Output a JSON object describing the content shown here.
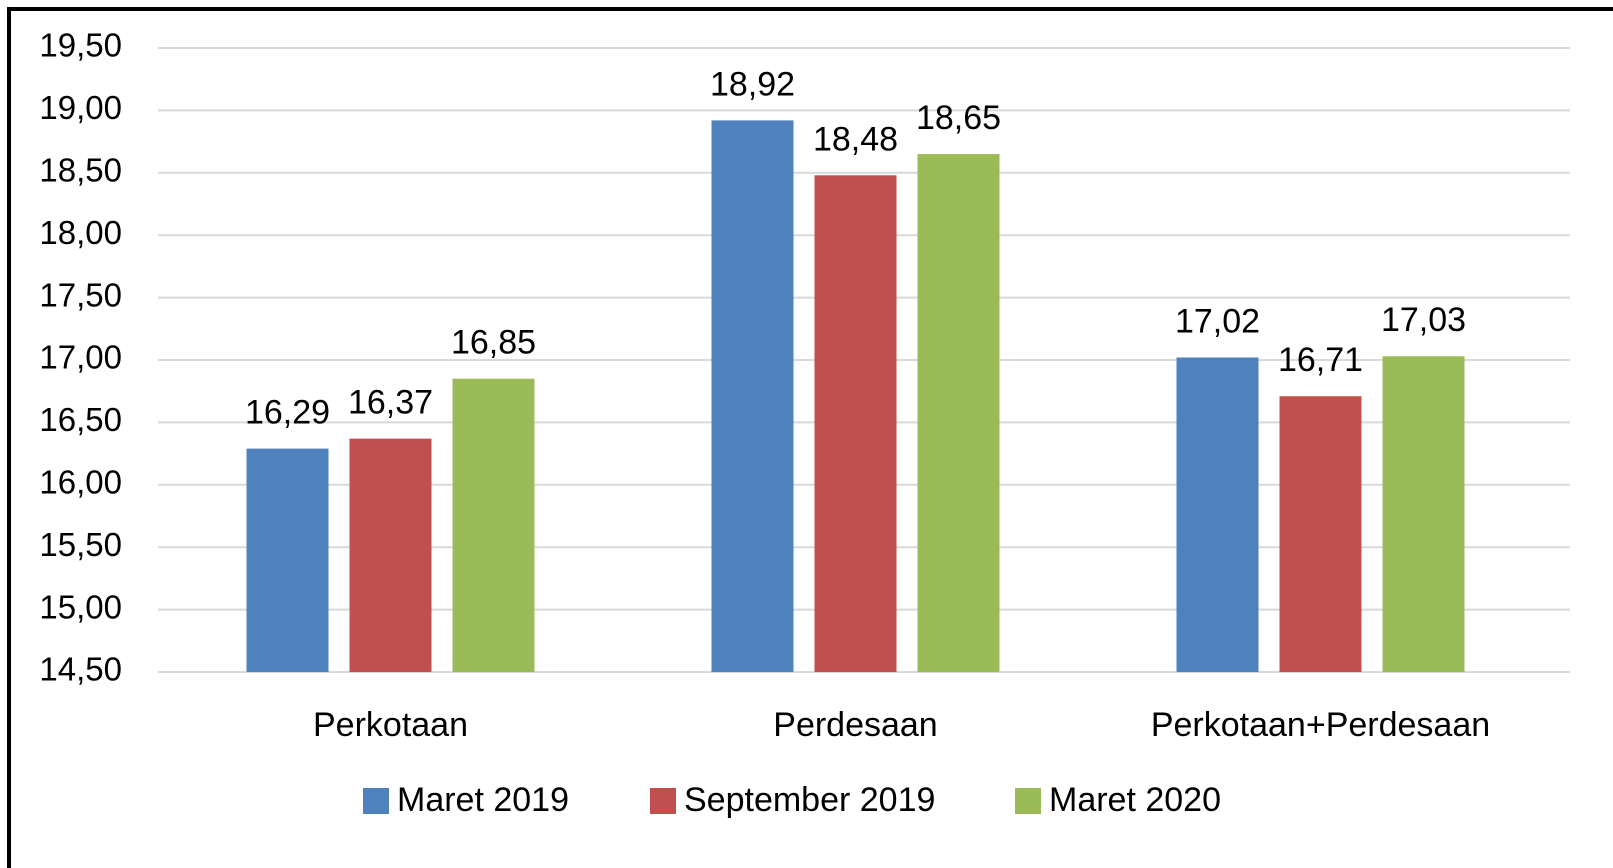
{
  "chart_data": {
    "type": "bar",
    "categories": [
      "Perkotaan",
      "Perdesaan",
      "Perkotaan+Perdesaan"
    ],
    "series": [
      {
        "name": "Maret 2019",
        "color": "#4f81bd",
        "values": [
          16.29,
          18.92,
          17.02
        ],
        "value_labels": [
          "16,29",
          "18,92",
          "17,02"
        ]
      },
      {
        "name": "September 2019",
        "color": "#c0504d",
        "values": [
          16.37,
          18.48,
          16.71
        ],
        "value_labels": [
          "16,37",
          "18,48",
          "16,71"
        ]
      },
      {
        "name": "Maret 2020",
        "color": "#9bbb59",
        "values": [
          16.85,
          18.65,
          17.03
        ],
        "value_labels": [
          "16,85",
          "18,65",
          "17,03"
        ]
      }
    ],
    "ylim": [
      14.5,
      19.5
    ],
    "yticks": [
      {
        "value": 14.5,
        "label": "14,50"
      },
      {
        "value": 15,
        "label": "15,00"
      },
      {
        "value": 15.5,
        "label": "15,50"
      },
      {
        "value": 16,
        "label": "16,00"
      },
      {
        "value": 16.5,
        "label": "16,50"
      },
      {
        "value": 17,
        "label": "17,00"
      },
      {
        "value": 17.5,
        "label": "17,50"
      },
      {
        "value": 18,
        "label": "18,00"
      },
      {
        "value": 18.5,
        "label": "18,50"
      },
      {
        "value": 19,
        "label": "19,00"
      },
      {
        "value": 19.5,
        "label": "19,50"
      }
    ],
    "grid": true,
    "legend": "bottom"
  }
}
